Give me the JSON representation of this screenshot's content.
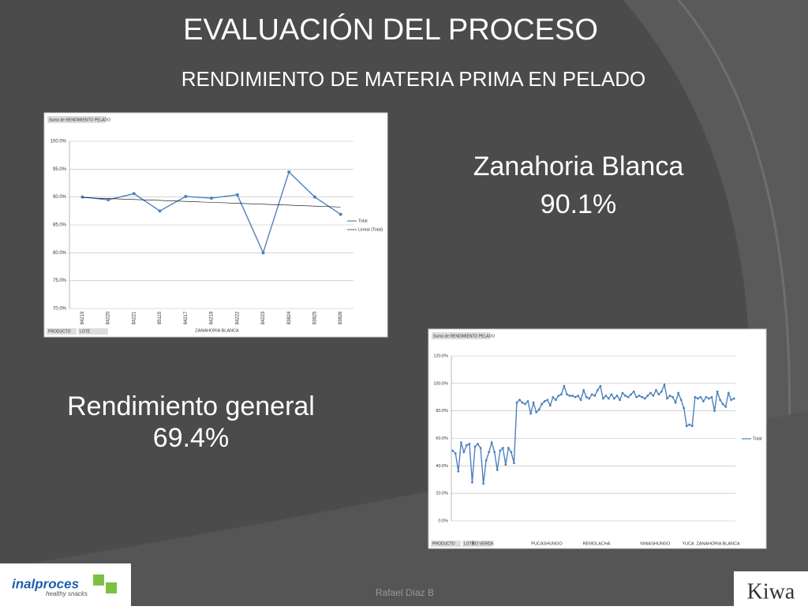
{
  "slide": {
    "title": "EVALUACIÓN DEL PROCESO",
    "subtitle": "RENDIMIENTO DE MATERIA PRIMA EN PELADO",
    "highlight_1": {
      "label": "Zanahoria Blanca",
      "value": "90.1%"
    },
    "highlight_2": {
      "label": "Rendimiento  general",
      "value": "69.4%"
    },
    "footer": "Rafael Díaz B",
    "logo_left": "inalproces",
    "logo_left_tagline": "healthy snacks",
    "logo_right": "Kiwa"
  },
  "chart_data": [
    {
      "type": "line",
      "title": "Suma de RENDIMIENTO PELADO",
      "row_fields": [
        "PRODUCTO",
        "LOTE"
      ],
      "groups": [
        "ZANAHORIA BLANCA"
      ],
      "categories": [
        "84219",
        "84220",
        "84221",
        "85115",
        "84217",
        "84218",
        "84222",
        "84223",
        "83824",
        "83825",
        "83826"
      ],
      "series": [
        {
          "name": "Total",
          "color": "#4f81bd",
          "values": [
            90.0,
            89.5,
            90.6,
            87.5,
            90.1,
            89.8,
            90.4,
            80.0,
            94.5,
            90.0,
            86.9
          ]
        },
        {
          "name": "Lineal (Total)",
          "color": "#000000",
          "values": [
            89.9,
            89.73,
            89.56,
            89.39,
            89.22,
            89.05,
            88.88,
            88.71,
            88.54,
            88.37,
            88.2
          ]
        }
      ],
      "ylim": [
        70,
        100
      ],
      "yticks": [
        {
          "value": 70,
          "label": "70.0%"
        },
        {
          "value": 75,
          "label": "75.0%"
        },
        {
          "value": 80,
          "label": "80.0%"
        },
        {
          "value": 85,
          "label": "85.0%"
        },
        {
          "value": 90,
          "label": "90.0%"
        },
        {
          "value": 95,
          "label": "95.0%"
        },
        {
          "value": 100,
          "label": "100.0%"
        }
      ],
      "grid": true
    },
    {
      "type": "line",
      "title": "Suma de RENDIMIENTO PELADO",
      "row_fields": [
        "PRODUCTO",
        "LOTE"
      ],
      "groups": [
        "ÑO VERDE",
        "PUCASHUNGO",
        "REMOLACHA",
        "YANASHUNGO",
        "YUCA",
        "ZANAHORIA BLANCA"
      ],
      "categories": [
        null,
        null,
        null,
        null,
        null,
        null,
        null,
        null,
        null,
        null,
        null,
        null,
        null,
        null,
        null,
        null,
        null,
        null,
        null,
        null,
        null,
        null,
        null,
        null,
        null,
        null,
        null,
        null,
        null,
        null,
        null,
        null,
        null,
        null,
        null,
        null,
        null,
        null,
        null,
        null,
        null,
        null,
        null,
        null,
        null,
        null,
        null,
        null,
        null,
        null,
        null,
        null,
        null,
        null,
        null,
        null,
        null,
        null,
        null,
        null,
        null,
        null,
        null,
        null,
        null,
        null,
        null,
        null,
        null,
        null,
        null,
        null,
        null,
        null,
        null,
        null,
        null,
        null,
        null,
        null,
        null,
        null,
        null,
        null,
        null,
        null,
        null,
        null,
        null,
        null,
        null,
        null,
        null,
        null,
        null,
        null,
        null,
        null,
        null,
        null,
        null,
        null
      ],
      "series": [
        {
          "name": "Total",
          "color": "#4f81bd",
          "values": [
            51,
            49,
            36,
            57,
            50,
            55,
            56,
            28,
            54,
            56,
            53,
            27,
            44,
            50,
            57,
            50,
            37,
            51,
            53,
            41,
            53,
            50,
            42,
            86,
            88,
            86,
            85,
            87,
            78,
            86,
            79,
            81,
            85,
            87,
            88,
            84,
            90,
            88,
            91,
            92,
            98,
            92,
            91,
            91,
            90,
            91,
            88,
            95,
            90,
            89,
            92,
            91,
            95,
            98,
            89,
            91,
            89,
            92,
            89,
            91,
            88,
            93,
            91,
            90,
            92,
            94,
            90,
            91,
            90,
            89,
            91,
            93,
            91,
            95,
            92,
            94,
            99,
            89,
            91,
            90,
            86,
            93,
            88,
            82,
            69,
            70,
            69,
            90,
            89,
            90,
            87,
            90,
            89,
            90,
            80,
            94,
            88,
            85,
            83,
            93,
            88,
            89
          ]
        }
      ],
      "ylim": [
        0,
        120
      ],
      "yticks": [
        {
          "value": 0,
          "label": "0.0%"
        },
        {
          "value": 20,
          "label": "20.0%"
        },
        {
          "value": 40,
          "label": "40.0%"
        },
        {
          "value": 60,
          "label": "60.0%"
        },
        {
          "value": 80,
          "label": "80.0%"
        },
        {
          "value": 100,
          "label": "100.0%"
        },
        {
          "value": 120,
          "label": "120.0%"
        }
      ],
      "grid": true
    }
  ]
}
